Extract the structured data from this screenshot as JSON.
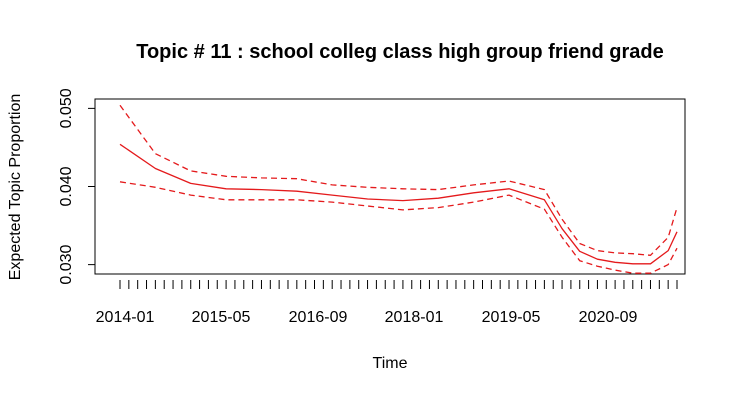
{
  "chart_data": {
    "type": "line",
    "title": "Topic # 11 :  school colleg class high group friend grade",
    "xlabel": "Time",
    "ylabel": "Expected Topic Proportion",
    "ylim": [
      0.0288,
      0.0512
    ],
    "xlim": [
      0,
      63
    ],
    "yticks": [
      "0.030",
      "0.040",
      "0.050"
    ],
    "ytick_values": [
      0.03,
      0.04,
      0.05
    ],
    "xtick_labels": [
      "2014-01",
      "2015-05",
      "2016-09",
      "2018-01",
      "2019-05",
      "2020-09"
    ],
    "xtick_label_positions": [
      0,
      16,
      32,
      48,
      64,
      80
    ],
    "minor_tick_count": 64,
    "x_month_index_of_first_tick": -3,
    "grid": false,
    "series": [
      {
        "style": "solid",
        "color": "#e41a1c",
        "x": [
          0,
          4,
          8,
          12,
          16,
          20,
          24,
          28,
          32,
          36,
          40,
          44,
          48,
          50,
          52,
          54,
          56,
          58,
          60,
          62,
          63
        ],
        "values": [
          0.0454,
          0.0423,
          0.0404,
          0.0397,
          0.0396,
          0.0394,
          0.0389,
          0.0384,
          0.0382,
          0.0385,
          0.0392,
          0.0397,
          0.0383,
          0.0346,
          0.0317,
          0.0307,
          0.0303,
          0.0301,
          0.0301,
          0.0318,
          0.0342
        ]
      },
      {
        "style": "dashed",
        "color": "#e41a1c",
        "x": [
          0,
          4,
          8,
          12,
          16,
          20,
          24,
          28,
          32,
          36,
          40,
          44,
          48,
          50,
          52,
          54,
          56,
          58,
          60,
          62,
          63
        ],
        "values": [
          0.0504,
          0.0442,
          0.042,
          0.0413,
          0.0411,
          0.041,
          0.0402,
          0.0399,
          0.0397,
          0.0396,
          0.0402,
          0.0407,
          0.0396,
          0.0358,
          0.0327,
          0.0318,
          0.0315,
          0.0314,
          0.0312,
          0.0335,
          0.0373
        ]
      },
      {
        "style": "dashed",
        "color": "#e41a1c",
        "x": [
          0,
          4,
          8,
          12,
          16,
          20,
          24,
          28,
          32,
          36,
          40,
          44,
          48,
          50,
          52,
          54,
          56,
          58,
          60,
          62,
          63
        ],
        "values": [
          0.0406,
          0.0399,
          0.0389,
          0.0383,
          0.0383,
          0.0383,
          0.038,
          0.0375,
          0.037,
          0.0373,
          0.038,
          0.0389,
          0.0371,
          0.0335,
          0.0305,
          0.0298,
          0.0293,
          0.0289,
          0.0289,
          0.03,
          0.0321
        ]
      }
    ]
  }
}
